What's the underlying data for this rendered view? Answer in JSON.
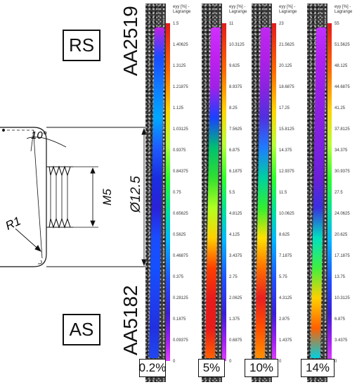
{
  "labels": {
    "rs": "RS",
    "as": "AS",
    "top_alloy": "AA2519",
    "bottom_alloy": "AA5182"
  },
  "drawing": {
    "angle": "10°",
    "thread": "M5",
    "diameter": "Ø12.5",
    "radius": "R1"
  },
  "panels": [
    {
      "title_line1": "eyy [%] -",
      "title_line2": "Lagrange",
      "percent": "0.2%",
      "ticks": [
        "1.5",
        "1.40625",
        "1.3125",
        "1.21875",
        "1.125",
        "1.03125",
        "0.9375",
        "0.84375",
        "0.75",
        "0.65625",
        "0.5625",
        "0.46875",
        "0.375",
        "0.28125",
        "0.1875",
        "0.09375",
        "0"
      ],
      "field_colors": [
        "#c020e8",
        "#1a4cff",
        "#0e7cff",
        "#00a8ff",
        "#1e5cff",
        "#1a2ee0",
        "#2a22d8",
        "#1a4cff",
        "#1450ff",
        "#1e40f0",
        "#2030e0",
        "#2048f0"
      ]
    },
    {
      "title_line1": "eyy [%] -",
      "title_line2": "Lagrange",
      "percent": "5%",
      "ticks": [
        "11",
        "10.3125",
        "9.625",
        "8.9375",
        "8.25",
        "7.5625",
        "6.875",
        "6.1875",
        "5.5",
        "4.8125",
        "4.125",
        "3.4375",
        "2.75",
        "2.0625",
        "1.375",
        "0.6875",
        "0"
      ],
      "field_colors": [
        "#d030ff",
        "#c020f0",
        "#a020e8",
        "#1a40ff",
        "#00c070",
        "#30e030",
        "#b0ff20",
        "#ffd000",
        "#ff4000",
        "#e81b1b",
        "#e81b1b",
        "#ff6000"
      ]
    },
    {
      "title_line1": "eyy [%] -",
      "title_line2": "Lagrange",
      "percent": "10%",
      "ticks": [
        "23",
        "21.5625",
        "20.125",
        "18.6875",
        "17.25",
        "15.8125",
        "14.375",
        "12.9375",
        "11.5",
        "10.0625",
        "8.625",
        "7.1875",
        "5.75",
        "4.3125",
        "2.875",
        "1.4375",
        "0"
      ],
      "field_colors": [
        "#c028f0",
        "#b020e8",
        "#8a22e0",
        "#5030e0",
        "#1e7cff",
        "#00d0a0",
        "#30f030",
        "#ffe000",
        "#ff7000",
        "#e82020",
        "#ff5000",
        "#ff9000"
      ]
    },
    {
      "title_line1": "eyy [%] -",
      "title_line2": "Lagrange",
      "percent": "14%",
      "ticks": [
        "55",
        "51.5625",
        "48.125",
        "44.6875",
        "41.25",
        "37.8125",
        "34.375",
        "30.9375",
        "27.5",
        "24.0625",
        "20.625",
        "17.1875",
        "13.75",
        "10.3125",
        "6.875",
        "3.4375",
        "0"
      ],
      "field_colors": [
        "#c030ff",
        "#b020f0",
        "#9a20e8",
        "#8a20e0",
        "#7a22e0",
        "#6a20d8",
        "#3a30e0",
        "#00e0c0",
        "#40f040",
        "#ffd000",
        "#ff6000",
        "#00d0e0"
      ]
    }
  ]
}
